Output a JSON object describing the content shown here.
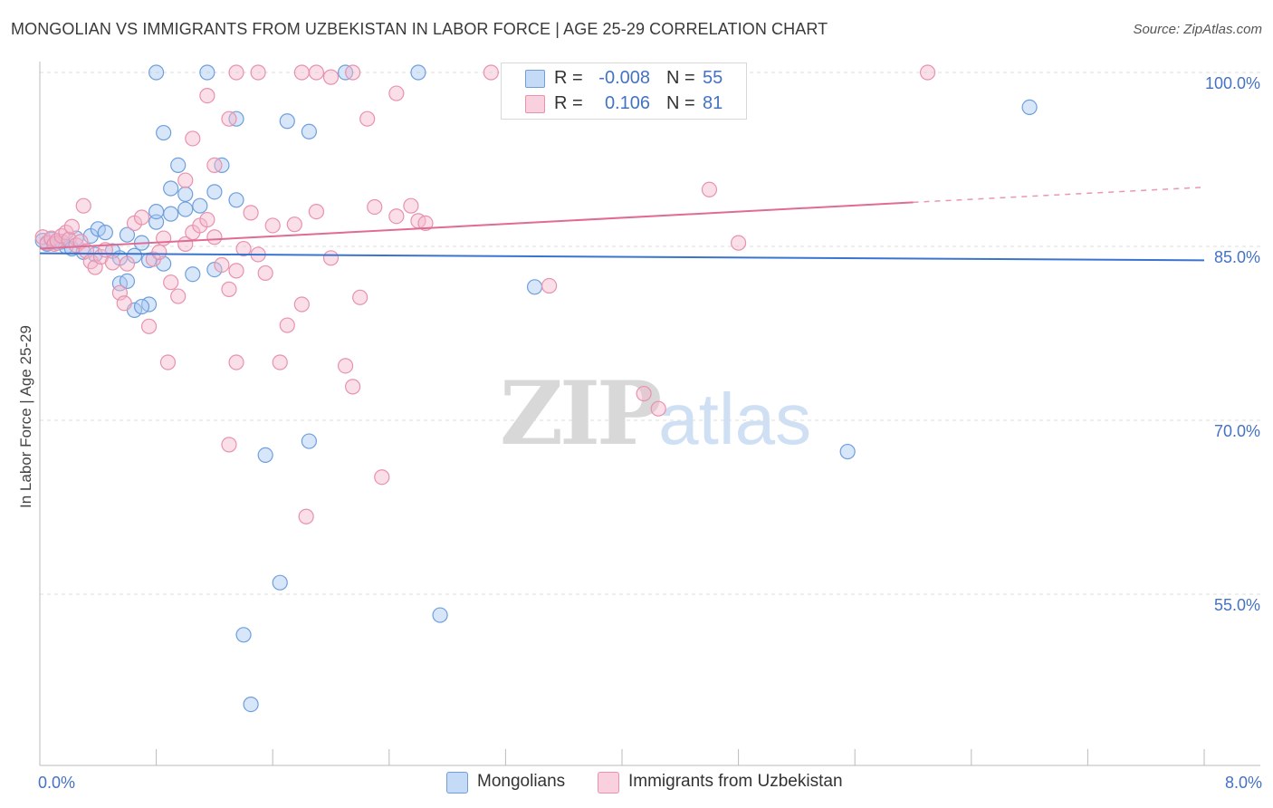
{
  "title": "MONGOLIAN VS IMMIGRANTS FROM UZBEKISTAN IN LABOR FORCE | AGE 25-29 CORRELATION CHART",
  "source": "Source: ZipAtlas.com",
  "watermark": {
    "zip": "ZIP",
    "atlas": "atlas"
  },
  "stats": [
    {
      "r_label": "R =",
      "r_value": "-0.008",
      "n_label": "N =",
      "n_value": "55",
      "color": "#a9c8f2"
    },
    {
      "r_label": "R =",
      "r_value": "0.106",
      "n_label": "N =",
      "n_value": "81",
      "color": "#f5b8cb"
    }
  ],
  "legend": [
    {
      "label": "Mongolians",
      "color": "#a9c8f2"
    },
    {
      "label": "Immigrants from Uzbekistan",
      "color": "#f5b8cb"
    }
  ],
  "chart_data": {
    "type": "scatter",
    "title": "MONGOLIAN VS IMMIGRANTS FROM UZBEKISTAN IN LABOR FORCE | AGE 25-29 CORRELATION CHART",
    "xlabel": "",
    "ylabel": "In Labor Force | Age 25-29",
    "xlim": [
      0.0,
      8.0
    ],
    "ylim": [
      40.0,
      101.5
    ],
    "x_tick_labels": [
      "0.0%",
      "8.0%"
    ],
    "y_ticks": [
      55.0,
      70.0,
      85.0,
      100.0
    ],
    "y_tick_labels": [
      "55.0%",
      "70.0%",
      "85.0%",
      "100.0%"
    ],
    "series": [
      {
        "name": "Mongolians",
        "color": "#a9c8f2",
        "stroke": "#6e9fdc",
        "line_color": "#3a74d0",
        "trend": {
          "x0": 0.0,
          "y0": 84.4,
          "x1": 8.0,
          "y1": 83.8
        },
        "points": [
          [
            0.02,
            85.5
          ],
          [
            0.05,
            85.2
          ],
          [
            0.08,
            85.6
          ],
          [
            0.12,
            85.3
          ],
          [
            0.15,
            85.4
          ],
          [
            0.18,
            85.0
          ],
          [
            0.22,
            84.8
          ],
          [
            0.25,
            85.7
          ],
          [
            0.3,
            84.5
          ],
          [
            0.35,
            85.9
          ],
          [
            0.38,
            84.3
          ],
          [
            0.4,
            86.5
          ],
          [
            0.45,
            86.2
          ],
          [
            0.5,
            84.6
          ],
          [
            0.55,
            84.0
          ],
          [
            0.6,
            86.0
          ],
          [
            0.65,
            84.2
          ],
          [
            0.7,
            85.3
          ],
          [
            0.75,
            83.8
          ],
          [
            0.8,
            87.1
          ],
          [
            0.85,
            83.5
          ],
          [
            0.9,
            87.8
          ],
          [
            1.0,
            88.2
          ],
          [
            1.05,
            82.6
          ],
          [
            1.2,
            83.0
          ],
          [
            1.35,
            89.0
          ],
          [
            0.55,
            81.8
          ],
          [
            0.6,
            82.0
          ],
          [
            0.65,
            79.5
          ],
          [
            0.75,
            80.0
          ],
          [
            0.7,
            79.8
          ],
          [
            0.8,
            88.0
          ],
          [
            0.9,
            90.0
          ],
          [
            1.0,
            89.5
          ],
          [
            1.1,
            88.5
          ],
          [
            0.95,
            92.0
          ],
          [
            1.2,
            89.7
          ],
          [
            1.25,
            92.0
          ],
          [
            0.85,
            94.8
          ],
          [
            1.7,
            95.8
          ],
          [
            1.85,
            94.9
          ],
          [
            1.35,
            96.0
          ],
          [
            0.8,
            100.0
          ],
          [
            1.15,
            100.0
          ],
          [
            2.1,
            100.0
          ],
          [
            2.6,
            100.0
          ],
          [
            3.4,
            81.5
          ],
          [
            1.55,
            67.0
          ],
          [
            1.85,
            68.2
          ],
          [
            5.55,
            67.3
          ],
          [
            1.65,
            56.0
          ],
          [
            2.75,
            53.2
          ],
          [
            1.4,
            51.5
          ],
          [
            1.45,
            45.5
          ],
          [
            6.8,
            97.0
          ]
        ]
      },
      {
        "name": "Immigrants from Uzbekistan",
        "color": "#f5b8cb",
        "stroke": "#e892ad",
        "line_color": "#e06b93",
        "trend": {
          "x0": 0.0,
          "y0": 84.8,
          "x1": 6.0,
          "y1": 88.8
        },
        "trend_dashed_to": {
          "x": 8.0,
          "y": 90.1
        },
        "points": [
          [
            0.02,
            85.8
          ],
          [
            0.05,
            85.3
          ],
          [
            0.08,
            85.7
          ],
          [
            0.1,
            85.2
          ],
          [
            0.12,
            85.5
          ],
          [
            0.15,
            85.9
          ],
          [
            0.18,
            86.2
          ],
          [
            0.2,
            85.6
          ],
          [
            0.22,
            86.7
          ],
          [
            0.25,
            85.1
          ],
          [
            0.28,
            85.4
          ],
          [
            0.3,
            88.5
          ],
          [
            0.32,
            84.6
          ],
          [
            0.35,
            83.7
          ],
          [
            0.38,
            83.2
          ],
          [
            0.42,
            84.1
          ],
          [
            0.45,
            84.7
          ],
          [
            0.5,
            83.6
          ],
          [
            0.55,
            81.0
          ],
          [
            0.58,
            80.1
          ],
          [
            0.6,
            83.5
          ],
          [
            0.65,
            87.0
          ],
          [
            0.7,
            87.5
          ],
          [
            0.75,
            78.1
          ],
          [
            0.78,
            83.9
          ],
          [
            0.82,
            84.5
          ],
          [
            0.85,
            85.7
          ],
          [
            0.9,
            81.9
          ],
          [
            0.95,
            80.7
          ],
          [
            1.0,
            85.2
          ],
          [
            1.05,
            86.2
          ],
          [
            1.1,
            86.8
          ],
          [
            1.15,
            87.3
          ],
          [
            1.2,
            85.8
          ],
          [
            1.25,
            83.4
          ],
          [
            1.3,
            81.3
          ],
          [
            1.35,
            82.9
          ],
          [
            1.4,
            84.8
          ],
          [
            1.45,
            87.9
          ],
          [
            1.5,
            84.3
          ],
          [
            1.55,
            82.7
          ],
          [
            1.6,
            86.8
          ],
          [
            1.65,
            75.0
          ],
          [
            1.7,
            78.2
          ],
          [
            1.75,
            86.9
          ],
          [
            1.8,
            80.0
          ],
          [
            1.9,
            88.0
          ],
          [
            2.0,
            84.0
          ],
          [
            2.1,
            74.7
          ],
          [
            2.15,
            72.9
          ],
          [
            2.2,
            80.6
          ],
          [
            2.3,
            88.4
          ],
          [
            2.45,
            87.6
          ],
          [
            2.55,
            88.5
          ],
          [
            2.6,
            87.2
          ],
          [
            2.65,
            87.0
          ],
          [
            1.35,
            75.0
          ],
          [
            0.88,
            75.0
          ],
          [
            1.3,
            67.9
          ],
          [
            1.83,
            61.7
          ],
          [
            2.35,
            65.1
          ],
          [
            1.0,
            90.7
          ],
          [
            1.05,
            94.3
          ],
          [
            1.3,
            96.0
          ],
          [
            1.2,
            92.0
          ],
          [
            2.25,
            96.0
          ],
          [
            2.45,
            98.2
          ],
          [
            1.15,
            98.0
          ],
          [
            1.35,
            100.0
          ],
          [
            1.5,
            100.0
          ],
          [
            1.8,
            100.0
          ],
          [
            1.9,
            100.0
          ],
          [
            2.0,
            99.6
          ],
          [
            2.15,
            100.0
          ],
          [
            3.1,
            100.0
          ],
          [
            3.5,
            81.6
          ],
          [
            4.15,
            72.3
          ],
          [
            4.25,
            71.0
          ],
          [
            4.8,
            85.3
          ],
          [
            4.6,
            89.9
          ],
          [
            6.1,
            100.0
          ]
        ]
      }
    ]
  }
}
